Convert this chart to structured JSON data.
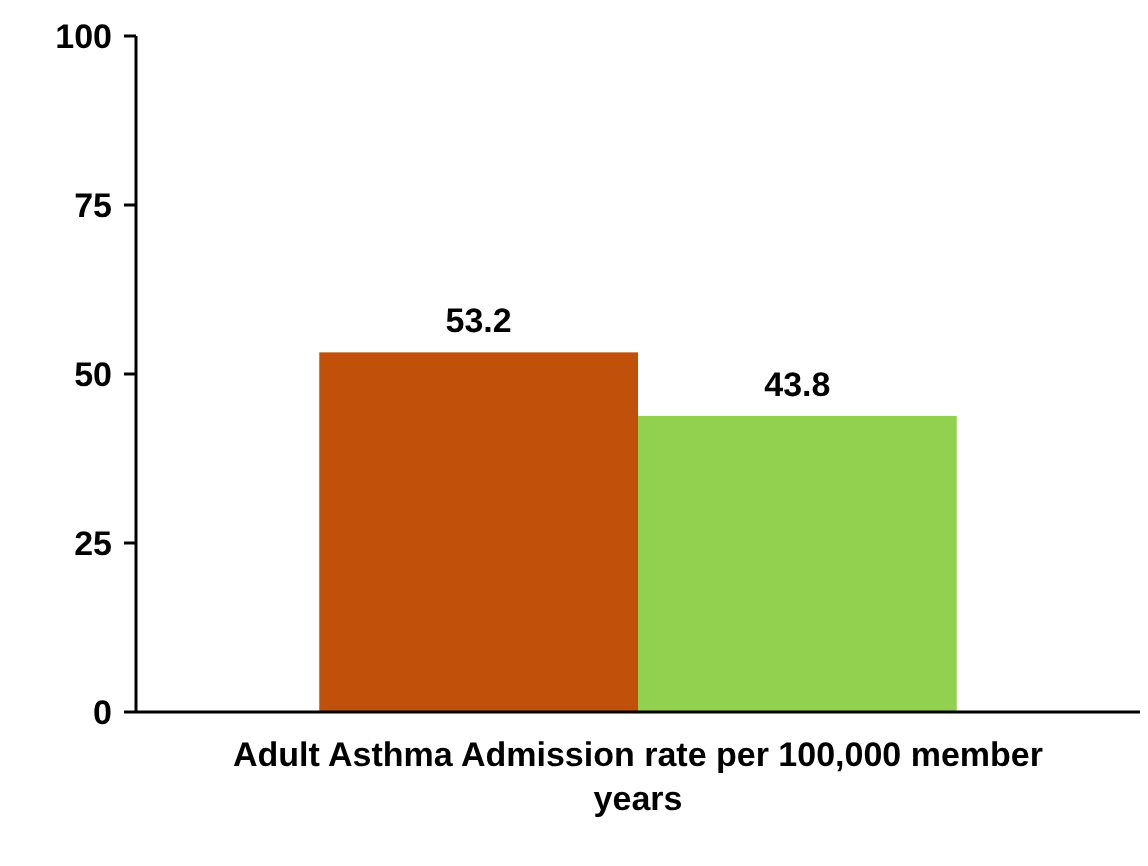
{
  "chart_data": {
    "type": "bar",
    "categories": [
      "Adult Asthma Admission rate per 100,000 member years"
    ],
    "series": [
      {
        "color": "#c0500a",
        "values": [
          53.2
        ]
      },
      {
        "color": "#92d050",
        "values": [
          43.8
        ]
      }
    ],
    "ylim": [
      0,
      100
    ],
    "yticks": [
      0,
      25,
      50,
      75,
      100
    ],
    "data_labels": true,
    "grid": false
  }
}
